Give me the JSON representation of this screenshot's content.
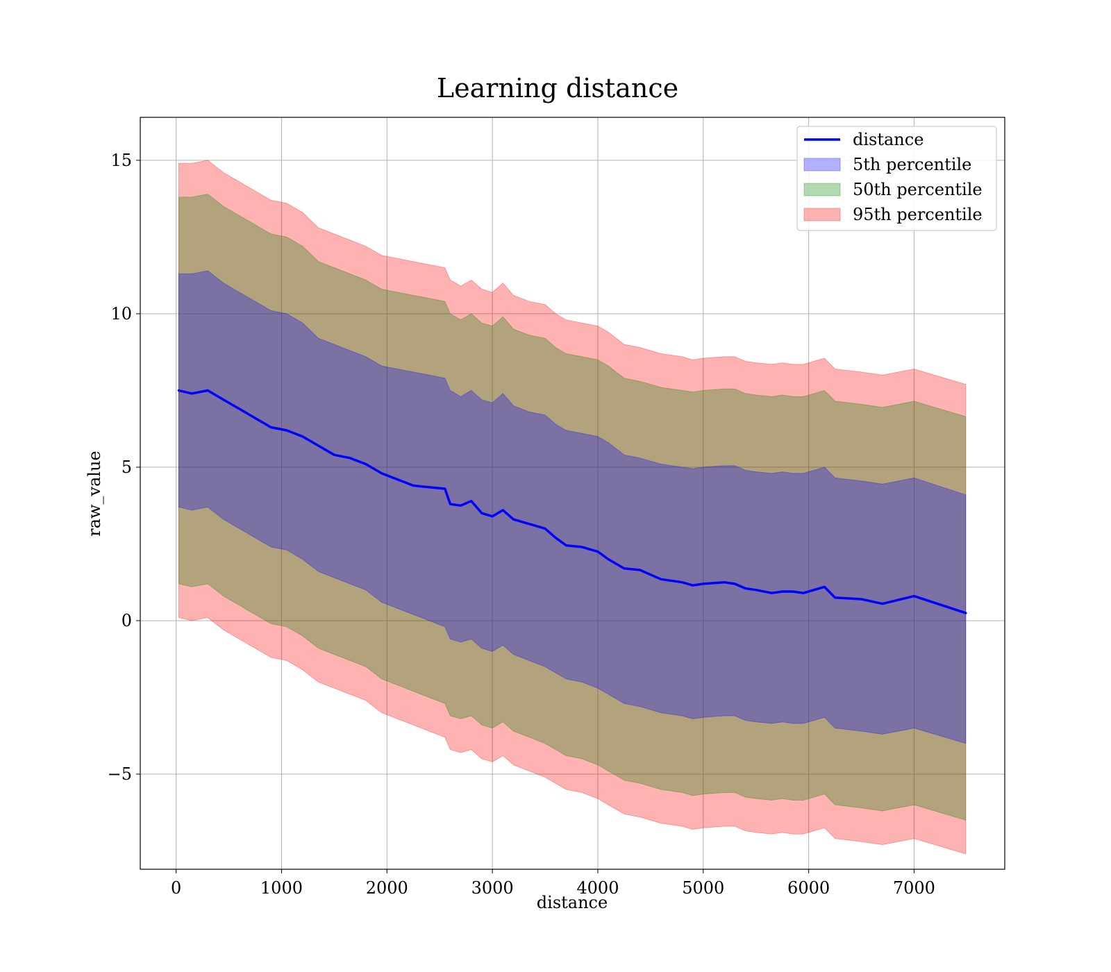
{
  "chart_data": {
    "type": "line",
    "title": "Learning distance",
    "xlabel": "distance",
    "ylabel": "raw_value",
    "xlim": [
      -340,
      7860
    ],
    "ylim": [
      -8.1,
      16.4
    ],
    "xticks": [
      0,
      1000,
      2000,
      3000,
      4000,
      5000,
      6000,
      7000
    ],
    "xtick_labels": [
      "0",
      "1000",
      "2000",
      "3000",
      "4000",
      "5000",
      "6000",
      "7000"
    ],
    "yticks": [
      -5,
      0,
      5,
      10,
      15
    ],
    "ytick_labels": [
      "−5",
      "0",
      "5",
      "10",
      "15"
    ],
    "grid": true,
    "legend_position": "top-right",
    "series": [
      {
        "name": "distance",
        "kind": "line",
        "color": "#0000ff"
      },
      {
        "name": "5th percentile",
        "kind": "band",
        "color": "#0000ff",
        "opacity": 0.3
      },
      {
        "name": "50th percentile",
        "kind": "band",
        "color": "#008000",
        "opacity": 0.3
      },
      {
        "name": "95th percentile",
        "kind": "band",
        "color": "#ff0000",
        "opacity": 0.3
      }
    ],
    "x": [
      25,
      150,
      300,
      450,
      600,
      750,
      900,
      1050,
      1200,
      1350,
      1500,
      1650,
      1800,
      1950,
      2100,
      2250,
      2400,
      2550,
      2600,
      2700,
      2800,
      2900,
      3000,
      3100,
      3200,
      3350,
      3500,
      3600,
      3700,
      3850,
      4000,
      4100,
      4250,
      4400,
      4600,
      4800,
      4900,
      5000,
      5200,
      5300,
      5400,
      5500,
      5650,
      5750,
      5850,
      5950,
      6050,
      6150,
      6250,
      6500,
      6700,
      7000,
      7490
    ],
    "distance": [
      7.5,
      7.4,
      7.5,
      7.2,
      6.9,
      6.6,
      6.3,
      6.2,
      6.0,
      5.7,
      5.4,
      5.3,
      5.1,
      4.8,
      4.6,
      4.4,
      4.35,
      4.3,
      3.8,
      3.75,
      3.9,
      3.5,
      3.4,
      3.6,
      3.3,
      3.15,
      3.0,
      2.7,
      2.45,
      2.4,
      2.25,
      2.0,
      1.7,
      1.65,
      1.35,
      1.25,
      1.15,
      1.2,
      1.25,
      1.2,
      1.05,
      1.0,
      0.9,
      0.95,
      0.95,
      0.9,
      1.0,
      1.1,
      0.75,
      0.7,
      0.55,
      0.8,
      0.25
    ],
    "band_95_upper": [
      14.9,
      14.9,
      15.0,
      14.6,
      14.3,
      14.0,
      13.7,
      13.6,
      13.3,
      12.8,
      12.6,
      12.4,
      12.2,
      11.9,
      11.8,
      11.7,
      11.6,
      11.5,
      11.1,
      10.9,
      11.1,
      10.8,
      10.7,
      11.0,
      10.6,
      10.4,
      10.3,
      10.0,
      9.8,
      9.7,
      9.6,
      9.4,
      9.0,
      8.9,
      8.7,
      8.6,
      8.5,
      8.55,
      8.6,
      8.6,
      8.45,
      8.4,
      8.35,
      8.4,
      8.35,
      8.35,
      8.45,
      8.55,
      8.2,
      8.1,
      8.0,
      8.2,
      7.7
    ],
    "band_50_upper": [
      13.8,
      13.8,
      13.9,
      13.5,
      13.2,
      12.9,
      12.6,
      12.5,
      12.2,
      11.7,
      11.5,
      11.3,
      11.1,
      10.8,
      10.7,
      10.6,
      10.5,
      10.4,
      10.0,
      9.8,
      10.0,
      9.7,
      9.6,
      9.9,
      9.5,
      9.3,
      9.2,
      8.9,
      8.7,
      8.6,
      8.5,
      8.3,
      7.9,
      7.8,
      7.6,
      7.5,
      7.45,
      7.5,
      7.55,
      7.55,
      7.4,
      7.35,
      7.3,
      7.35,
      7.3,
      7.3,
      7.4,
      7.5,
      7.15,
      7.05,
      6.95,
      7.15,
      6.65
    ],
    "band_5_upper": [
      11.3,
      11.3,
      11.4,
      11.0,
      10.7,
      10.4,
      10.1,
      10.0,
      9.7,
      9.2,
      9.0,
      8.8,
      8.6,
      8.3,
      8.2,
      8.1,
      8.0,
      7.9,
      7.5,
      7.3,
      7.5,
      7.2,
      7.1,
      7.4,
      7.0,
      6.8,
      6.7,
      6.4,
      6.2,
      6.1,
      6.0,
      5.8,
      5.4,
      5.3,
      5.1,
      5.0,
      4.95,
      5.0,
      5.05,
      5.05,
      4.9,
      4.85,
      4.8,
      4.85,
      4.8,
      4.8,
      4.9,
      5.0,
      4.65,
      4.55,
      4.45,
      4.65,
      4.1
    ],
    "band_5_lower": [
      3.7,
      3.6,
      3.7,
      3.3,
      3.0,
      2.7,
      2.4,
      2.3,
      2.0,
      1.6,
      1.4,
      1.2,
      1.0,
      0.6,
      0.4,
      0.2,
      0.0,
      -0.2,
      -0.6,
      -0.7,
      -0.6,
      -0.9,
      -1.0,
      -0.8,
      -1.1,
      -1.3,
      -1.5,
      -1.7,
      -1.9,
      -2.0,
      -2.2,
      -2.4,
      -2.7,
      -2.8,
      -3.0,
      -3.1,
      -3.2,
      -3.15,
      -3.1,
      -3.1,
      -3.25,
      -3.3,
      -3.35,
      -3.3,
      -3.35,
      -3.35,
      -3.25,
      -3.15,
      -3.5,
      -3.6,
      -3.7,
      -3.5,
      -4.0
    ],
    "band_50_lower": [
      1.2,
      1.1,
      1.2,
      0.8,
      0.5,
      0.2,
      -0.1,
      -0.2,
      -0.5,
      -0.9,
      -1.1,
      -1.3,
      -1.5,
      -1.9,
      -2.1,
      -2.3,
      -2.5,
      -2.7,
      -3.1,
      -3.2,
      -3.1,
      -3.4,
      -3.5,
      -3.3,
      -3.6,
      -3.8,
      -4.0,
      -4.2,
      -4.4,
      -4.5,
      -4.7,
      -4.9,
      -5.2,
      -5.3,
      -5.5,
      -5.6,
      -5.7,
      -5.65,
      -5.6,
      -5.6,
      -5.75,
      -5.8,
      -5.85,
      -5.8,
      -5.85,
      -5.85,
      -5.75,
      -5.65,
      -6.0,
      -6.1,
      -6.2,
      -6.0,
      -6.5
    ],
    "band_95_lower": [
      0.1,
      0.0,
      0.1,
      -0.3,
      -0.6,
      -0.9,
      -1.2,
      -1.3,
      -1.6,
      -2.0,
      -2.2,
      -2.4,
      -2.6,
      -3.0,
      -3.2,
      -3.4,
      -3.6,
      -3.8,
      -4.2,
      -4.3,
      -4.2,
      -4.5,
      -4.6,
      -4.4,
      -4.7,
      -4.9,
      -5.1,
      -5.3,
      -5.5,
      -5.6,
      -5.8,
      -6.0,
      -6.3,
      -6.4,
      -6.6,
      -6.7,
      -6.8,
      -6.75,
      -6.7,
      -6.7,
      -6.85,
      -6.9,
      -6.95,
      -6.9,
      -6.95,
      -6.95,
      -6.85,
      -6.75,
      -7.1,
      -7.2,
      -7.3,
      -7.1,
      -7.6
    ]
  }
}
